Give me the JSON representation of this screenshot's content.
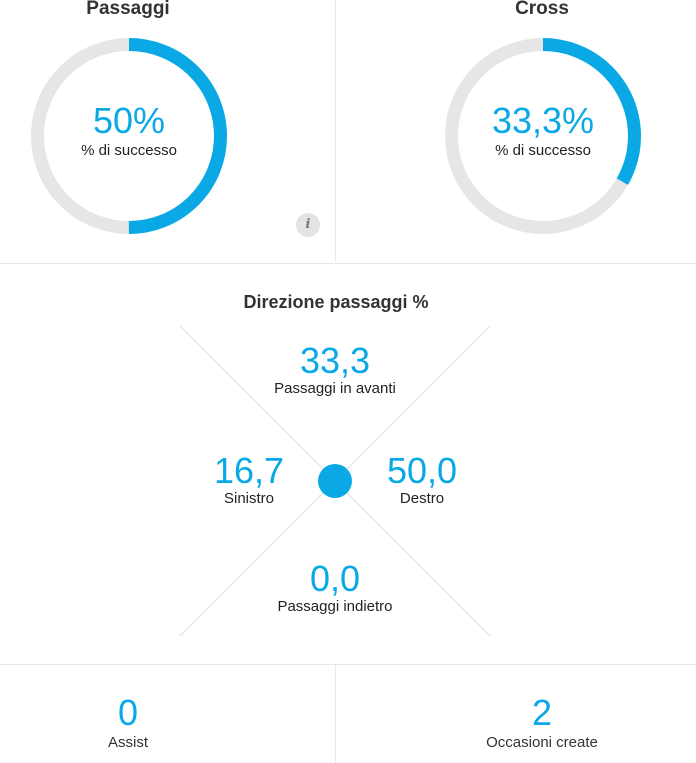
{
  "passes": {
    "title": "Passaggi",
    "value_text": "50%",
    "label": "% di successo",
    "success_fraction": 0.5
  },
  "cross": {
    "title": "Cross",
    "value_text": "33,3%",
    "label": "% di successo",
    "success_fraction": 0.333
  },
  "info_button": {
    "glyph": "i",
    "icon": "info-icon"
  },
  "direction": {
    "title": "Direzione passaggi %",
    "forward": {
      "value": "33,3",
      "label": "Passaggi in avanti"
    },
    "left": {
      "value": "16,7",
      "label": "Sinistro"
    },
    "right": {
      "value": "50,0",
      "label": "Destro"
    },
    "backward": {
      "value": "0,0",
      "label": "Passaggi indietro"
    }
  },
  "bottom": {
    "assist": {
      "value": "0",
      "label": "Assist"
    },
    "chances": {
      "value": "2",
      "label": "Occasioni create"
    }
  },
  "colors": {
    "accent": "#0aa9e6",
    "track": "#e6e6e6",
    "divider": "#e9e9e9"
  }
}
